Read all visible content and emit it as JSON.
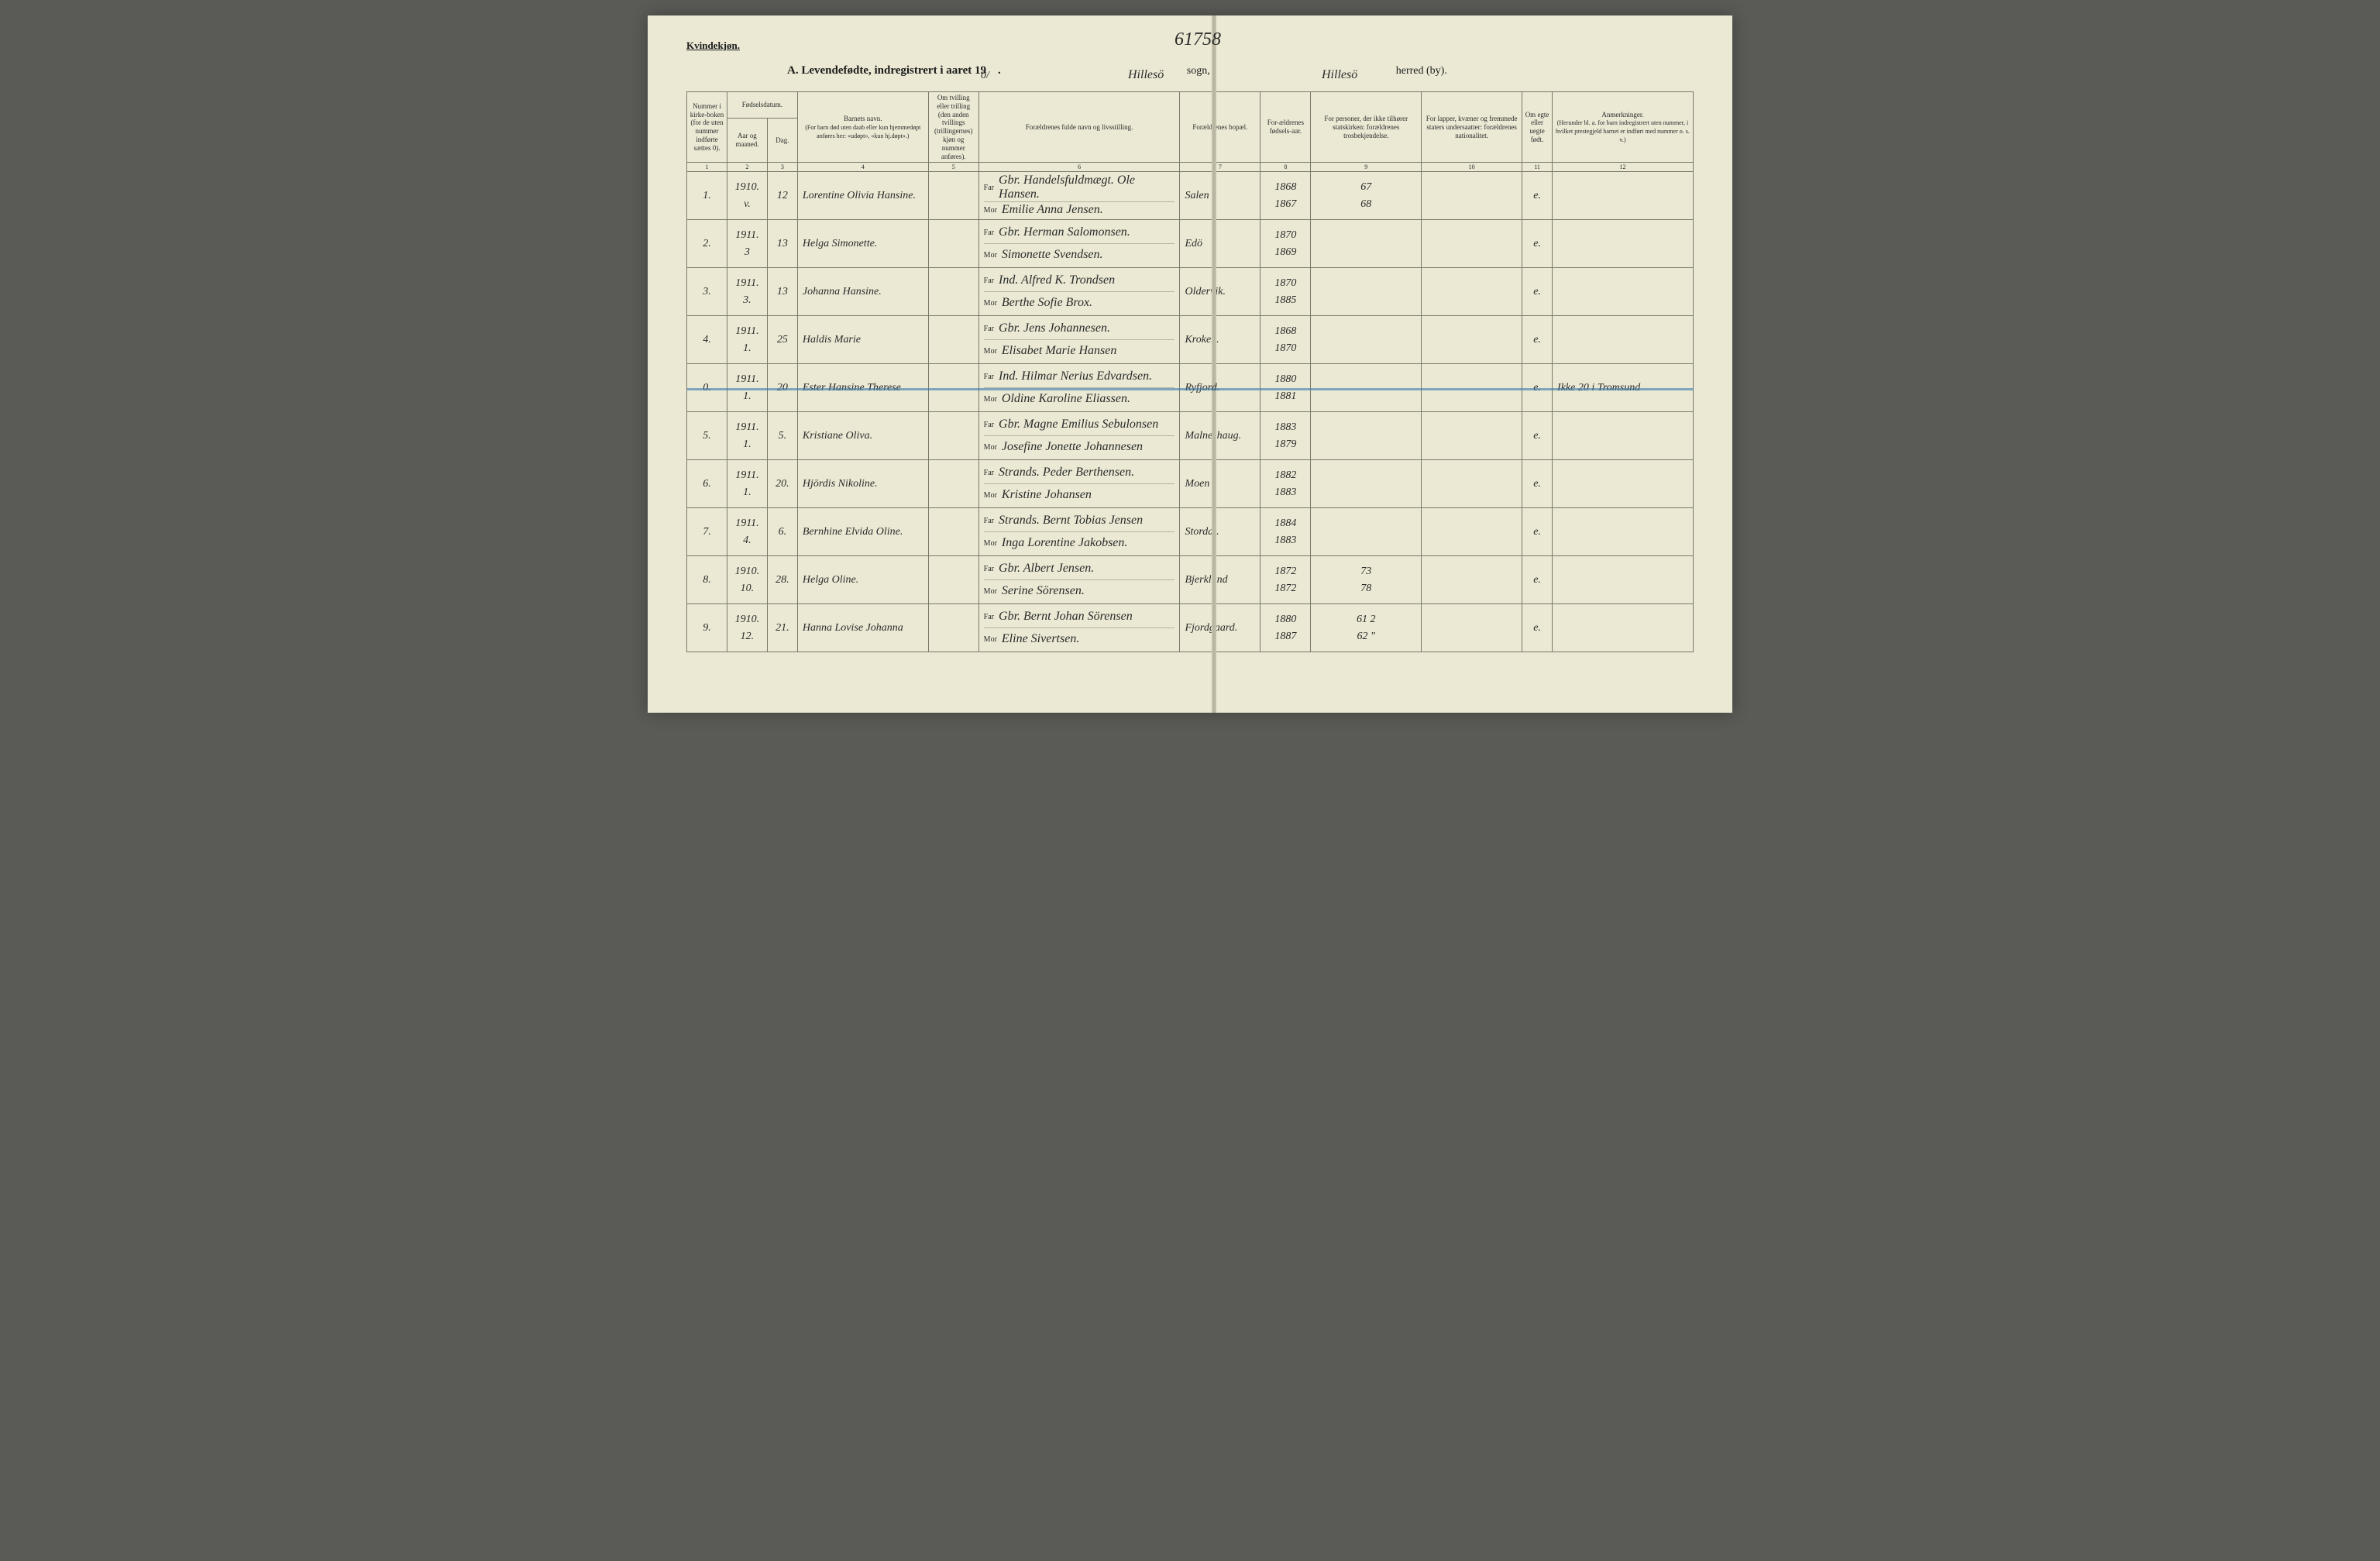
{
  "colors": {
    "paper": "#ebe9d4",
    "ink": "#1a1a1a",
    "rule": "#7a7868",
    "highlight": "#3a7aa8",
    "border_frame": "#5a5a56"
  },
  "header": {
    "corner_label": "Kvindekjøn.",
    "title_prefix": "A.  Levendefødte, indregistrert i aaret 19",
    "year_handwritten": "0/",
    "title_cont": ".",
    "sogn_label": "sogn,",
    "sogn_value": "Hillesö",
    "herred_label": "herred (by).",
    "herred_value": "Hillesö",
    "reference_number": "61758"
  },
  "columns": {
    "c1": "Nummer i kirke-boken (for de uten nummer indførte sættes 0).",
    "c2": "Fødselsdatum.",
    "c2a": "Aar og maaned.",
    "c2b": "Dag.",
    "c4": "Barnets navn.",
    "c4_note": "(For barn død uten daab eller kun hjemmedøpt anføres her: «udøpt», «kun hj.døpt».)",
    "c5": "Om tvilling eller trilling (den anden tvillings (trillingernes) kjøn og nummer anføres).",
    "c6": "Forældrenes fulde navn og livsstilling.",
    "c6_far": "Far",
    "c6_mor": "Mor",
    "c7": "Forældrenes bopæl.",
    "c8": "For-ældrenes fødsels-aar.",
    "c9": "For personer, der ikke tilhører statskirken: forældrenes trosbekjendelse.",
    "c10": "For lapper, kvæner og fremmede staters undersaatter: forældrenes nationalitet.",
    "c11": "Om egte eller uegte født.",
    "c12": "Anmerkninger.",
    "c12_note": "(Herunder bl. a. for barn indregistrert uten nummer, i hvilket prestegjeld barnet er indført med nummer o. s. v.)",
    "nums": [
      "1",
      "2",
      "3",
      "4",
      "5",
      "6",
      "7",
      "8",
      "9",
      "10",
      "11",
      "12"
    ]
  },
  "rows": [
    {
      "num": "1.",
      "yr": "1910.",
      "mo": "v.",
      "day": "12",
      "child": "Lorentine Olivia Hansine.",
      "far": "Gbr. Handelsfuldmægt. Ole Hansen.",
      "mor": "Emilie Anna Jensen.",
      "bopel": "Salen",
      "faar": "1868",
      "maar": "1867",
      "note9": "67",
      "note9b": "68",
      "egte": "e.",
      "anm": ""
    },
    {
      "num": "2.",
      "yr": "1911.",
      "mo": "3",
      "day": "13",
      "child": "Helga Simonette.",
      "far": "Gbr. Herman Salomonsen.",
      "mor": "Simonette Svendsen.",
      "bopel": "Edö",
      "faar": "1870",
      "maar": "1869",
      "note9": "",
      "note9b": "",
      "egte": "e.",
      "anm": ""
    },
    {
      "num": "3.",
      "yr": "1911.",
      "mo": "3.",
      "day": "13",
      "child": "Johanna Hansine.",
      "far": "Ind. Alfred K. Trondsen",
      "mor": "Berthe Sofie Brox.",
      "bopel": "Oldervik.",
      "faar": "1870",
      "maar": "1885",
      "note9": "",
      "note9b": "",
      "egte": "e.",
      "anm": ""
    },
    {
      "num": "4.",
      "yr": "1911.",
      "mo": "1.",
      "day": "25",
      "child": "Haldis Marie",
      "far": "Gbr. Jens Johannesen.",
      "mor": "Elisabet Marie Hansen",
      "bopel": "Kroken.",
      "faar": "1868",
      "maar": "1870",
      "note9": "",
      "note9b": "",
      "egte": "e.",
      "anm": ""
    },
    {
      "num": "0.",
      "yr": "1911.",
      "mo": "1.",
      "day": "20",
      "child": "Ester Hansine Therese",
      "far": "Ind. Hilmar Nerius Edvardsen.",
      "mor": "Oldine Karoline Eliassen.",
      "bopel": "Ryfjord.",
      "faar": "1880",
      "maar": "1881",
      "note9": "",
      "note9b": "",
      "egte": "e.",
      "anm": "Ikke 20 i Tromsund",
      "highlight": true
    },
    {
      "num": "5.",
      "yr": "1911.",
      "mo": "1.",
      "day": "5.",
      "child": "Kristiane Oliva.",
      "far": "Gbr. Magne Emilius Sebulonsen",
      "mor": "Josefine Jonette Johannesen",
      "bopel": "Malneshaug.",
      "faar": "1883",
      "maar": "1879",
      "note9": "",
      "note9b": "",
      "egte": "e.",
      "anm": ""
    },
    {
      "num": "6.",
      "yr": "1911.",
      "mo": "1.",
      "day": "20.",
      "child": "Hjördis Nikoline.",
      "far": "Strands. Peder Berthensen.",
      "mor": "Kristine Johansen",
      "bopel": "Moen",
      "faar": "1882",
      "maar": "1883",
      "note9": "",
      "note9b": "",
      "egte": "e.",
      "anm": ""
    },
    {
      "num": "7.",
      "yr": "1911.",
      "mo": "4.",
      "day": "6.",
      "child": "Bernhine Elvida Oline.",
      "far": "Strands. Bernt Tobias Jensen",
      "mor": "Inga Lorentine Jakobsen.",
      "bopel": "Stordal.",
      "faar": "1884",
      "maar": "1883",
      "note9": "",
      "note9b": "",
      "egte": "e.",
      "anm": ""
    },
    {
      "num": "8.",
      "yr": "1910.",
      "mo": "10.",
      "day": "28.",
      "child": "Helga Oline.",
      "far": "Gbr. Albert Jensen.",
      "mor": "Serine Sörensen.",
      "bopel": "Bjerklund",
      "faar": "1872",
      "maar": "1872",
      "note9": "73",
      "note9b": "78",
      "egte": "e.",
      "anm": ""
    },
    {
      "num": "9.",
      "yr": "1910.",
      "mo": "12.",
      "day": "21.",
      "child": "Hanna Lovise Johanna",
      "far": "Gbr. Bernt Johan Sörensen",
      "mor": "Eline Sivertsen.",
      "bopel": "Fjordgaard.",
      "faar": "1880",
      "maar": "1887",
      "note9": "61   2",
      "note9b": "62   \"",
      "egte": "e.",
      "anm": ""
    }
  ]
}
